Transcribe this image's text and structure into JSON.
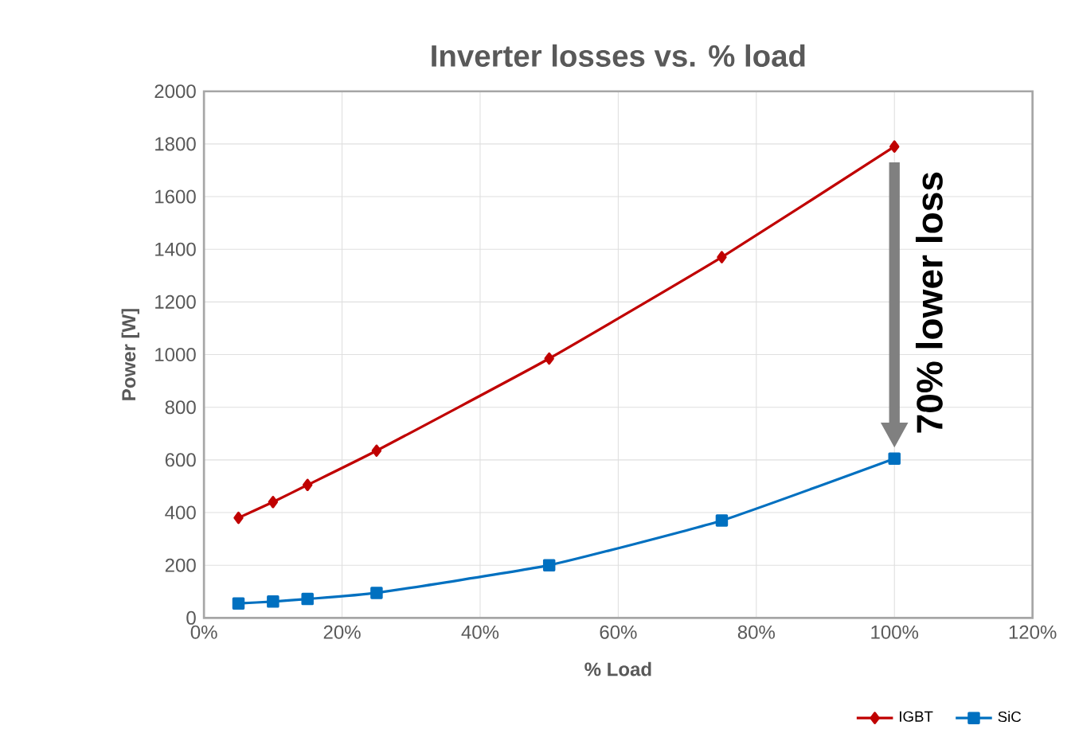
{
  "chart_data": {
    "type": "line",
    "title": "Inverter losses vs. % load",
    "xlabel": "% Load",
    "ylabel": "Power [W]",
    "x": [
      5,
      10,
      15,
      25,
      50,
      75,
      100
    ],
    "series": [
      {
        "name": "IGBT",
        "color": "#c00000",
        "marker": "diamond",
        "values": [
          380,
          440,
          505,
          635,
          985,
          1370,
          1790
        ]
      },
      {
        "name": "SiC",
        "color": "#0070c0",
        "marker": "square",
        "values": [
          55,
          62,
          72,
          95,
          200,
          370,
          605
        ]
      }
    ],
    "xlim": [
      0,
      120
    ],
    "xticks": [
      {
        "value": 0,
        "label": "0%"
      },
      {
        "value": 20,
        "label": "20%"
      },
      {
        "value": 40,
        "label": "40%"
      },
      {
        "value": 60,
        "label": "60%"
      },
      {
        "value": 80,
        "label": "80%"
      },
      {
        "value": 100,
        "label": "100%"
      },
      {
        "value": 120,
        "label": "120%"
      }
    ],
    "ylim": [
      0,
      2000
    ],
    "yticks": [
      0,
      200,
      400,
      600,
      800,
      1000,
      1200,
      1400,
      1600,
      1800,
      2000
    ],
    "grid": true,
    "legend": "bottom right",
    "annotations": [
      "70% lower loss"
    ]
  }
}
